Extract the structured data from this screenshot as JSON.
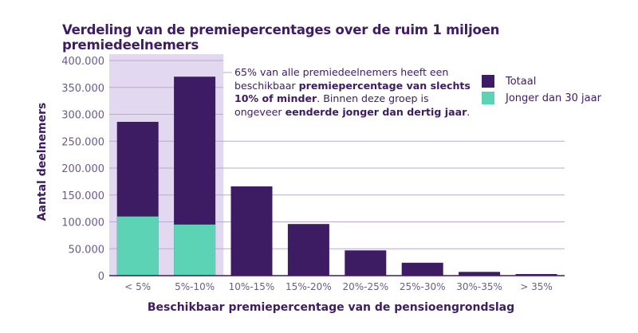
{
  "chart_data": {
    "type": "bar",
    "stacked": false,
    "title": "Verdeling van de premiepercentages over de ruim 1 miljoen premiedeelnemers",
    "xlabel": "Beschikbaar premiepercentage van de pensioengrondslag",
    "ylabel": "Aantal deelnemers",
    "categories": [
      "< 5%",
      "5%-10%",
      "10%-15%",
      "15%-20%",
      "20%-25%",
      "25%-30%",
      "30%-35%",
      "> 35%"
    ],
    "series": [
      {
        "name": "Totaal",
        "color": "#3d1c63",
        "values": [
          286000,
          370000,
          166000,
          96000,
          47000,
          24000,
          7000,
          3000
        ]
      },
      {
        "name": "Jonger dan 30 jaar",
        "color": "#5dd3b5",
        "values": [
          110000,
          95000,
          null,
          null,
          null,
          null,
          null,
          null
        ]
      }
    ],
    "ylim": [
      0,
      400000
    ],
    "yticks": [
      "0",
      "50.000",
      "100.000",
      "150.000",
      "200.000",
      "250.000",
      "300.000",
      "350.000",
      "400.000"
    ],
    "grid": true,
    "legend": "top-right",
    "highlight": {
      "categories": [
        "< 5%",
        "5%-10%"
      ],
      "color": "#e2d8ef"
    },
    "annotation": {
      "parts": [
        {
          "text": "65% van alle premiedeelnemers heeft een beschikbaar ",
          "bold": false
        },
        {
          "text": "premiepercentage van slechts 10% of minder",
          "bold": true
        },
        {
          "text": ". Binnen deze groep is ongeveer ",
          "bold": false
        },
        {
          "text": "eenderde jonger dan dertig jaar",
          "bold": true
        },
        {
          "text": ".",
          "bold": false
        }
      ]
    }
  }
}
